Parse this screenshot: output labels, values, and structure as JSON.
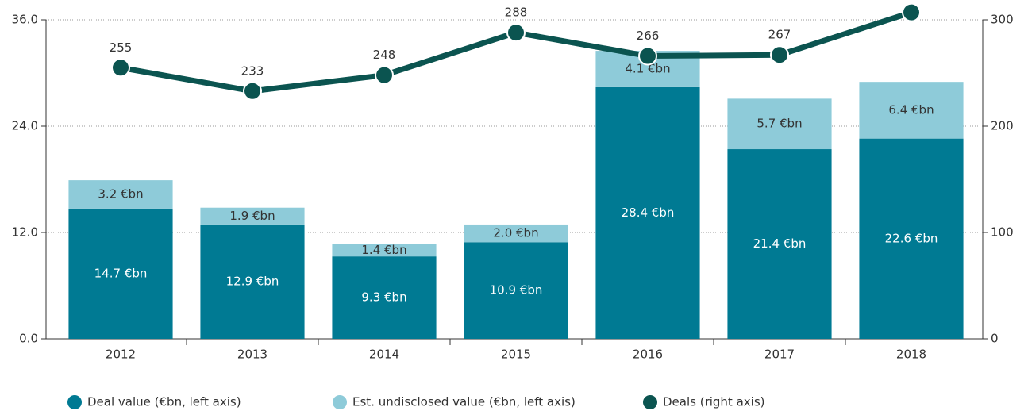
{
  "chart_data": {
    "type": "bar_line",
    "categories": [
      "2012",
      "2013",
      "2014",
      "2015",
      "2016",
      "2017",
      "2018"
    ],
    "series": [
      {
        "name": "Deal value (€bn, left axis)",
        "color": "#007a93",
        "values": [
          14.7,
          12.9,
          9.3,
          10.9,
          28.4,
          21.4,
          22.6
        ],
        "value_labels": [
          "14.7 €bn",
          "12.9 €bn",
          "9.3 €bn",
          "10.9 €bn",
          "28.4 €bn",
          "21.4 €bn",
          "22.6 €bn"
        ]
      },
      {
        "name": "Est. undisclosed value (€bn, left axis)",
        "color": "#8ecbd9",
        "values": [
          3.2,
          1.9,
          1.4,
          2.0,
          4.1,
          5.7,
          6.4
        ],
        "value_labels": [
          "3.2 €bn",
          "1.9 €bn",
          "1.4 €bn",
          "2.0 €bn",
          "4.1 €bn",
          "5.7 €bn",
          "6.4 €bn"
        ]
      },
      {
        "name": "Deals (right axis)",
        "color": "#0b5450",
        "axis": "y2",
        "values": [
          255,
          233,
          248,
          288,
          266,
          267,
          307
        ]
      }
    ],
    "ylim": [
      0,
      36
    ],
    "yticks": [
      {
        "value": 0,
        "label": "0.0"
      },
      {
        "value": 12,
        "label": "12.0"
      },
      {
        "value": 24,
        "label": "24.0"
      },
      {
        "value": 36,
        "label": "36.0"
      }
    ],
    "y2lim": [
      0,
      300
    ],
    "y2ticks": [
      0,
      100,
      200,
      300
    ],
    "grid": true
  }
}
